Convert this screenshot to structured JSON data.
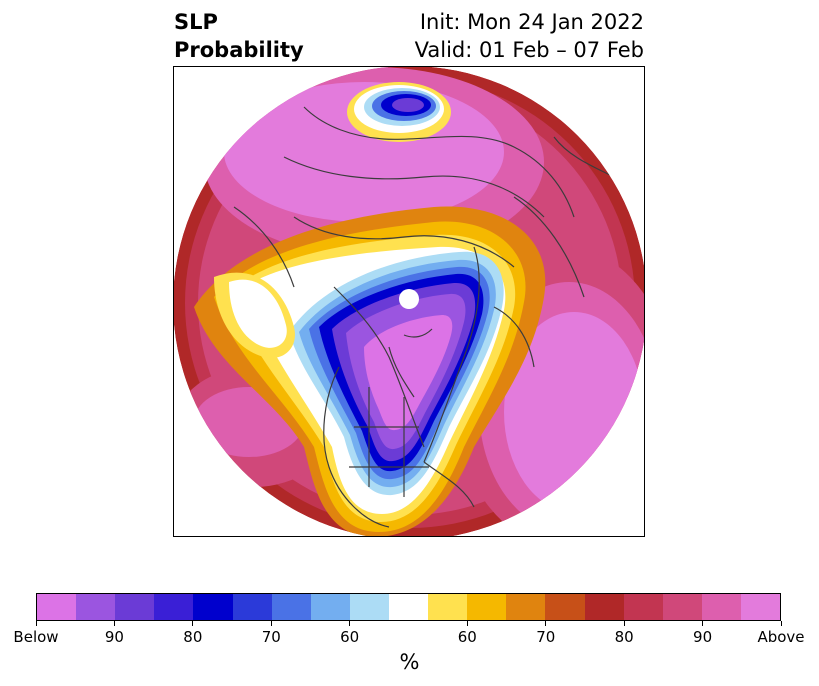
{
  "title": {
    "left_line1": "SLP",
    "left_line2": "Probability",
    "right_line1": "Init: Mon 24 Jan 2022",
    "right_line2": "Valid: 01 Feb – 07 Feb"
  },
  "map": {
    "projection": "north-polar-stereographic",
    "fields": "sea-level-pressure probability (below / above)"
  },
  "colorbar": {
    "colors": [
      "#dc73e6",
      "#9b55e0",
      "#6b3bd6",
      "#3a1fd6",
      "#0000cd",
      "#2b3ad9",
      "#4a72e6",
      "#73aef0",
      "#acdcf5",
      "#ffffff",
      "#ffe14f",
      "#f5b800",
      "#e0840f",
      "#c75018",
      "#b02828",
      "#c23551",
      "#d0487a",
      "#dd5fae",
      "#e37bdc"
    ],
    "labels": [
      "Below",
      "90",
      "80",
      "70",
      "60",
      "60",
      "70",
      "80",
      "90",
      "Above"
    ],
    "unit": "%"
  },
  "palette": {
    "below_strong": "#9b55e0",
    "below_core": "#0000cd",
    "above_mid": "#c23551",
    "above_strong": "#e37bdc",
    "coast": "#3c3c3c"
  }
}
